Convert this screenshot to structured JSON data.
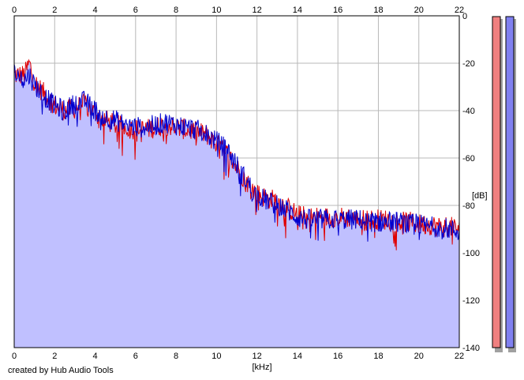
{
  "chart_data": {
    "type": "area",
    "title": "",
    "xlabel": "[kHz]",
    "ylabel": "[dB]",
    "xlim": [
      0,
      22
    ],
    "ylim": [
      -140,
      0
    ],
    "x_ticks": [
      "0",
      "2",
      "4",
      "6",
      "8",
      "10",
      "12",
      "14",
      "16",
      "18",
      "20",
      "22"
    ],
    "y_ticks": [
      "0",
      "-20",
      "-40",
      "-60",
      "-80",
      "-100",
      "-120",
      "-140"
    ],
    "grid": true,
    "series": [
      {
        "color": "#e00000",
        "x": [
          0,
          0.5,
          0.75,
          1,
          1.5,
          2,
          2.5,
          3,
          3.5,
          4,
          4.5,
          5,
          5.5,
          6,
          6.5,
          7,
          7.5,
          8,
          8.5,
          9,
          9.5,
          10,
          10.5,
          11,
          11.5,
          12,
          12.5,
          13,
          13.5,
          14,
          14.5,
          15,
          15.5,
          16,
          16.5,
          17,
          17.5,
          18,
          18.5,
          19,
          19.5,
          20,
          20.5,
          21,
          21.5,
          22
        ],
        "values": [
          -25,
          -25,
          -20,
          -28,
          -33,
          -38,
          -40,
          -39,
          -37,
          -41,
          -44,
          -46,
          -47,
          -48,
          -48,
          -47,
          -46,
          -47,
          -48,
          -49,
          -50,
          -54,
          -58,
          -64,
          -70,
          -75,
          -77,
          -78,
          -81,
          -84,
          -85,
          -85,
          -85,
          -85,
          -85,
          -86,
          -86,
          -86,
          -86,
          -87,
          -87,
          -88,
          -88,
          -89,
          -89,
          -90
        ]
      },
      {
        "color": "#0000d0",
        "x": [
          0,
          0.5,
          0.75,
          1,
          1.5,
          2,
          2.5,
          3,
          3.5,
          4,
          4.5,
          5,
          5.5,
          6,
          6.5,
          7,
          7.5,
          8,
          8.5,
          9,
          9.5,
          10,
          10.5,
          11,
          11.5,
          12,
          12.5,
          13,
          13.5,
          14,
          14.5,
          15,
          15.5,
          16,
          16.5,
          17,
          17.5,
          18,
          18.5,
          19,
          19.5,
          20,
          20.5,
          21,
          21.5,
          22
        ],
        "values": [
          -24,
          -27,
          -25,
          -29,
          -34,
          -38,
          -40,
          -37,
          -36,
          -40,
          -43,
          -44,
          -46,
          -47,
          -47,
          -46,
          -45,
          -46,
          -47,
          -48,
          -50,
          -53,
          -56,
          -63,
          -70,
          -76,
          -78,
          -80,
          -82,
          -85,
          -86,
          -86,
          -86,
          -86,
          -86,
          -86,
          -87,
          -87,
          -87,
          -87,
          -88,
          -88,
          -89,
          -89,
          -90,
          -91
        ]
      }
    ],
    "fill_color": "#c0c0ff",
    "meters": [
      {
        "name": "",
        "color": "#f08080"
      },
      {
        "name": "",
        "color": "#8080f0"
      }
    ]
  },
  "footer": {
    "credit": "created by Hub Audio Tools"
  }
}
